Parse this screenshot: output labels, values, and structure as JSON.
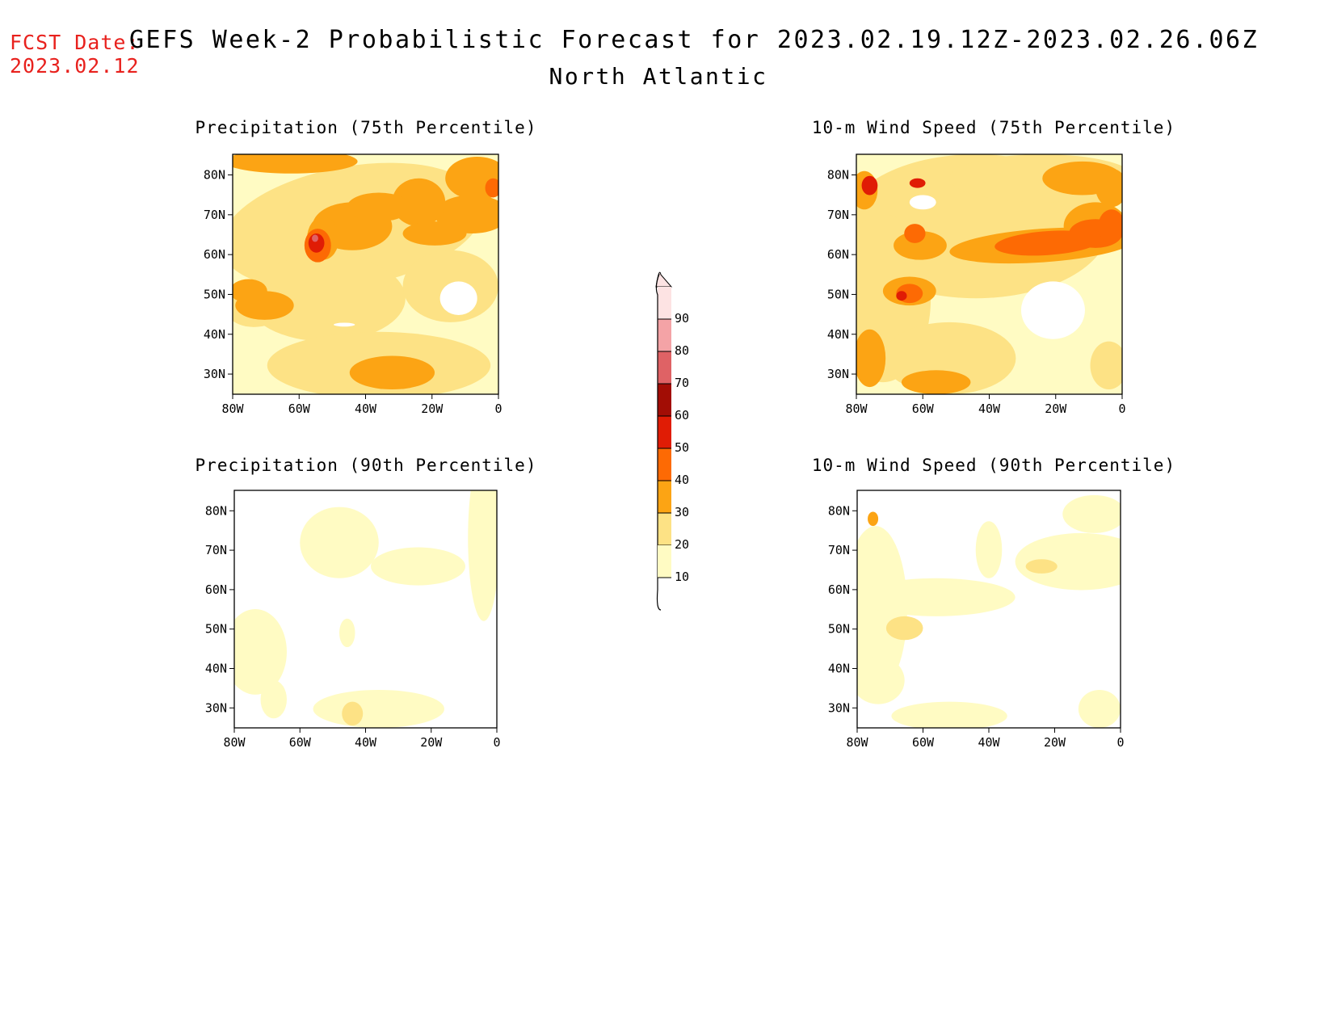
{
  "forecast_date": {
    "label": "FCST Date:",
    "value": "2023.02.12"
  },
  "title": "GEFS Week-2 Probabilistic Forecast for 2023.02.19.12Z-2023.02.26.06Z",
  "subtitle": "North Atlantic",
  "axes": {
    "lat_labels": [
      "80N",
      "70N",
      "60N",
      "50N",
      "40N",
      "30N"
    ],
    "lon_labels": [
      "80W",
      "60W",
      "40W",
      "20W",
      "0"
    ]
  },
  "panels": [
    {
      "id": "precip-75",
      "title": "Precipitation (75th Percentile)"
    },
    {
      "id": "wind-75",
      "title": "10-m Wind Speed (75th Percentile)"
    },
    {
      "id": "precip-90",
      "title": "Precipitation (90th Percentile)"
    },
    {
      "id": "wind-90",
      "title": "10-m Wind Speed (90th Percentile)"
    }
  ],
  "colorbar": {
    "levels": [
      "10",
      "20",
      "30",
      "40",
      "50",
      "60",
      "70",
      "80",
      "90"
    ],
    "colors": [
      "#fffbc3",
      "#fde285",
      "#fca414",
      "#fd6a04",
      "#e01c05",
      "#a20d05",
      "#df6265",
      "#f4a3a6",
      "#fde3e3"
    ]
  }
}
